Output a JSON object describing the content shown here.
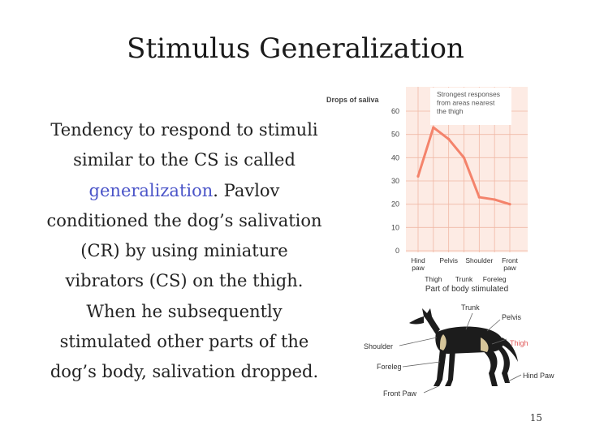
{
  "slide": {
    "title": "Stimulus Generalization",
    "body_part1": "Tendency to respond to stimuli similar to the CS is called ",
    "body_accent": "generalization",
    "body_part2": ". Pavlov conditioned the dog’s salivation (CR) by using miniature vibrators (CS) on the thigh. When he subsequently stimulated other parts of the dog’s body, salivation dropped.",
    "page_number": "15"
  },
  "chart_data": {
    "type": "line",
    "ylabel": "Drops of saliva",
    "xlabel": "Part of body stimulated",
    "ylim": [
      0,
      60
    ],
    "yticks": [
      0,
      10,
      20,
      30,
      40,
      50,
      60
    ],
    "categories": [
      "Hind paw",
      "Pelvis",
      "Shoulder",
      "Front paw"
    ],
    "categories_lower": [
      "Thigh",
      "Trunk",
      "Foreleg"
    ],
    "x": [
      0,
      1,
      2,
      3,
      4,
      5,
      6
    ],
    "values": [
      32,
      53,
      48,
      40,
      23,
      22,
      20
    ],
    "annotation": "Strongest responses from areas nearest the thigh",
    "line_color": "#f4836b",
    "panel_color": "#fdebe4",
    "grid_color": "#f0b9a6",
    "grid": true
  },
  "dog_labels": {
    "trunk": "Trunk",
    "pelvis": "Pelvis",
    "thigh": "Thigh",
    "shoulder": "Shoulder",
    "foreleg": "Foreleg",
    "hind_paw": "Hind Paw",
    "front_paw": "Front Paw"
  },
  "colors": {
    "accent": "#4a54c8",
    "highlight": "#e05a5a"
  }
}
